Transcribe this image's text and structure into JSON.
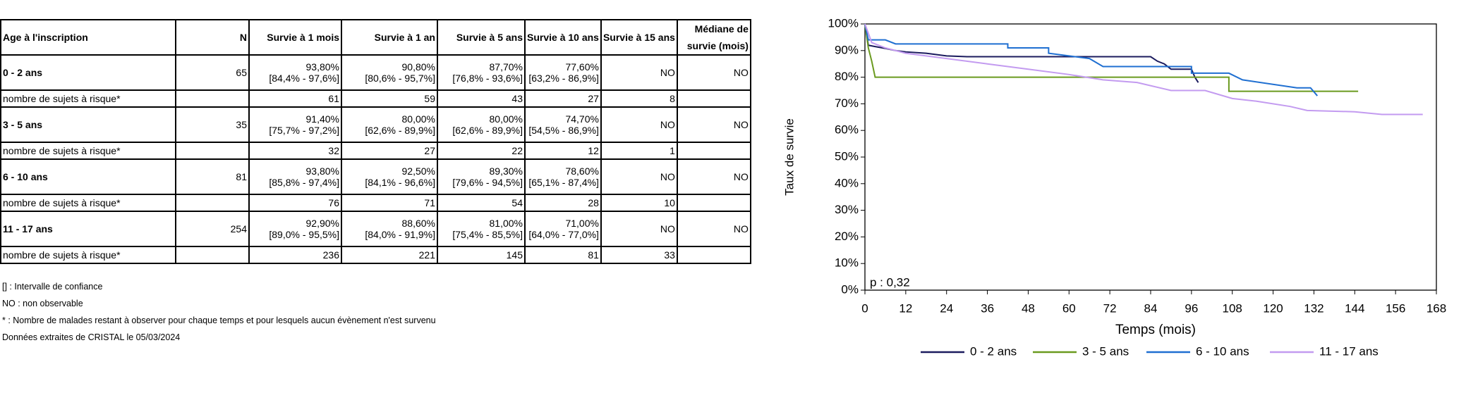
{
  "table": {
    "headers": [
      "Age à l'inscription",
      "N",
      "Survie à 1 mois",
      "Survie à 1 an",
      "Survie à 5 ans",
      "Survie à 10 ans",
      "Survie à 15 ans",
      "Médiane de survie (mois)"
    ],
    "groups": [
      {
        "label": "0 - 2 ans",
        "n": 65,
        "survival": [
          {
            "value": "93,80%",
            "ci": "[84,4% - 97,6%]"
          },
          {
            "value": "90,80%",
            "ci": "[80,6% - 95,7%]"
          },
          {
            "value": "87,70%",
            "ci": "[76,8% - 93,6%]"
          },
          {
            "value": "77,60%",
            "ci": "[63,2% - 86,9%]"
          }
        ],
        "survival_15": "NO",
        "median": "NO",
        "risk_label": "nombre de sujets à risque*",
        "at_risk": [
          61,
          59,
          43,
          27,
          8
        ]
      },
      {
        "label": "3 - 5 ans",
        "n": 35,
        "survival": [
          {
            "value": "91,40%",
            "ci": "[75,7% - 97,2%]"
          },
          {
            "value": "80,00%",
            "ci": "[62,6% - 89,9%]"
          },
          {
            "value": "80,00%",
            "ci": "[62,6% - 89,9%]"
          },
          {
            "value": "74,70%",
            "ci": "[54,5% - 86,9%]"
          }
        ],
        "survival_15": "NO",
        "median": "NO",
        "risk_label": "nombre de sujets à risque*",
        "at_risk": [
          32,
          27,
          22,
          12,
          1
        ]
      },
      {
        "label": "6 - 10 ans",
        "n": 81,
        "survival": [
          {
            "value": "93,80%",
            "ci": "[85,8% - 97,4%]"
          },
          {
            "value": "92,50%",
            "ci": "[84,1% - 96,6%]"
          },
          {
            "value": "89,30%",
            "ci": "[79,6% - 94,5%]"
          },
          {
            "value": "78,60%",
            "ci": "[65,1% - 87,4%]"
          }
        ],
        "survival_15": "NO",
        "median": "NO",
        "risk_label": "nombre de sujets à risque*",
        "at_risk": [
          76,
          71,
          54,
          28,
          10
        ]
      },
      {
        "label": "11 - 17 ans",
        "n": 254,
        "survival": [
          {
            "value": "92,90%",
            "ci": "[89,0% - 95,5%]"
          },
          {
            "value": "88,60%",
            "ci": "[84,0% - 91,9%]"
          },
          {
            "value": "81,00%",
            "ci": "[75,4% - 85,5%]"
          },
          {
            "value": "71,00%",
            "ci": "[64,0% - 77,0%]"
          }
        ],
        "survival_15": "NO",
        "median": "NO",
        "risk_label": "nombre de sujets à risque*",
        "at_risk": [
          236,
          221,
          145,
          81,
          33
        ]
      }
    ]
  },
  "notes": [
    "[] : Intervalle de confiance",
    "NO : non observable",
    "* : Nombre de malades restant à observer pour chaque temps et pour lesquels aucun évènement n'est survenu",
    "Données extraites de CRISTAL le 05/03/2024"
  ],
  "chart_data": {
    "type": "line",
    "xlabel": "Temps (mois)",
    "ylabel": "Taux de survie",
    "annotation": "p : 0,32",
    "xlim": [
      0,
      168
    ],
    "xticks": [
      0,
      12,
      24,
      36,
      48,
      60,
      72,
      84,
      96,
      108,
      120,
      132,
      144,
      156,
      168
    ],
    "ylim": [
      0,
      100
    ],
    "yticks": [
      {
        "value": 0,
        "label": "0%"
      },
      {
        "value": 10,
        "label": "10%"
      },
      {
        "value": 20,
        "label": "20%"
      },
      {
        "value": 30,
        "label": "30%"
      },
      {
        "value": 40,
        "label": "40%"
      },
      {
        "value": 50,
        "label": "50%"
      },
      {
        "value": 60,
        "label": "60%"
      },
      {
        "value": 70,
        "label": "70%"
      },
      {
        "value": 80,
        "label": "80%"
      },
      {
        "value": 90,
        "label": "90%"
      },
      {
        "value": 100,
        "label": "100%"
      }
    ],
    "legend": "bottom",
    "series": [
      {
        "name": "0 - 2 ans",
        "color": "#1b1b5e",
        "x": [
          0,
          0.5,
          1,
          3,
          6,
          9,
          12,
          18,
          24,
          30,
          84,
          86,
          88,
          90,
          96,
          97,
          98
        ],
        "values": [
          100,
          96,
          92,
          91.5,
          90.8,
          90,
          89.5,
          89,
          88,
          87.7,
          87.7,
          86,
          85,
          83,
          83,
          80,
          78
        ]
      },
      {
        "name": "3 - 5 ans",
        "color": "#6a9a1f",
        "x": [
          0,
          1,
          2,
          3,
          107,
          107,
          145
        ],
        "values": [
          100,
          91,
          86,
          80,
          80,
          74.7,
          74.7
        ]
      },
      {
        "name": "6 - 10 ans",
        "color": "#1f6fd1",
        "x": [
          0,
          1,
          6,
          9,
          42,
          42,
          54,
          54,
          66,
          70,
          96,
          96,
          107,
          111,
          127,
          131,
          133
        ],
        "values": [
          100,
          94,
          94,
          92.5,
          92.5,
          91,
          91,
          89,
          87,
          84,
          84,
          81.5,
          81.5,
          79,
          76,
          76,
          73
        ]
      },
      {
        "name": "11 - 17 ans",
        "color": "#c39bf0",
        "x": [
          0,
          2,
          6,
          12,
          24,
          36,
          48,
          60,
          70,
          80,
          90,
          100,
          108,
          115,
          125,
          130,
          144,
          152,
          164
        ],
        "values": [
          100,
          93,
          91,
          89,
          87,
          85,
          83,
          81,
          79,
          78,
          75,
          75,
          72,
          71,
          69,
          67.5,
          67,
          66,
          66
        ]
      }
    ]
  }
}
